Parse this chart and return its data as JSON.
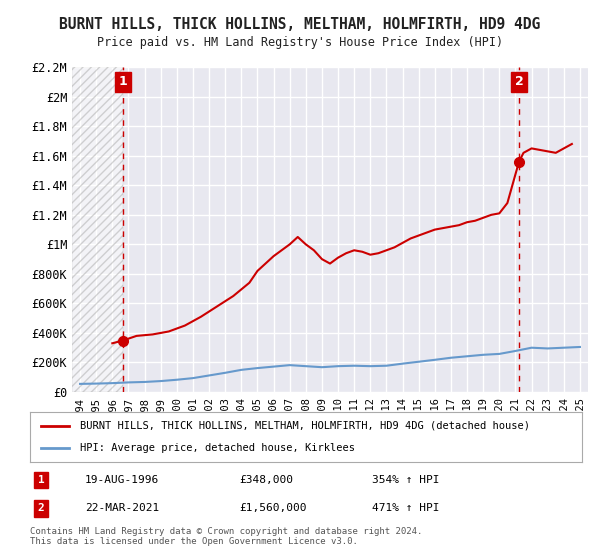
{
  "title": "BURNT HILLS, THICK HOLLINS, MELTHAM, HOLMFIRTH, HD9 4DG",
  "subtitle": "Price paid vs. HM Land Registry's House Price Index (HPI)",
  "ylim": [
    0,
    2200000
  ],
  "yticks": [
    0,
    200000,
    400000,
    600000,
    800000,
    1000000,
    1200000,
    1400000,
    1600000,
    1800000,
    2000000,
    2200000
  ],
  "ytick_labels": [
    "£0",
    "£200K",
    "£400K",
    "£600K",
    "£800K",
    "£1M",
    "£1.2M",
    "£1.4M",
    "£1.6M",
    "£1.8M",
    "£2M",
    "£2.2M"
  ],
  "xlim_start": 1993.5,
  "xlim_end": 2025.5,
  "xticks": [
    1994,
    1995,
    1996,
    1997,
    1998,
    1999,
    2000,
    2001,
    2002,
    2003,
    2004,
    2005,
    2006,
    2007,
    2008,
    2009,
    2010,
    2011,
    2012,
    2013,
    2014,
    2015,
    2016,
    2017,
    2018,
    2019,
    2020,
    2021,
    2022,
    2023,
    2024,
    2025
  ],
  "background_color": "#ffffff",
  "plot_bg_color": "#e8e8f0",
  "grid_color": "#ffffff",
  "hpi_line_color": "#6699cc",
  "price_line_color": "#cc0000",
  "vline_color": "#cc0000",
  "annotation_box_color": "#cc0000",
  "legend_label_price": "BURNT HILLS, THICK HOLLINS, MELTHAM, HOLMFIRTH, HD9 4DG (detached house)",
  "legend_label_hpi": "HPI: Average price, detached house, Kirklees",
  "point1_x": 1996.64,
  "point1_y": 348000,
  "point1_label": "1",
  "point1_date": "19-AUG-1996",
  "point1_price": "£348,000",
  "point1_hpi": "354% ↑ HPI",
  "point2_x": 2021.22,
  "point2_y": 1560000,
  "point2_label": "2",
  "point2_date": "22-MAR-2021",
  "point2_price": "£1,560,000",
  "point2_hpi": "471% ↑ HPI",
  "copyright_text": "Contains HM Land Registry data © Crown copyright and database right 2024.\nThis data is licensed under the Open Government Licence v3.0.",
  "hpi_data_x": [
    1994,
    1995,
    1996,
    1997,
    1998,
    1999,
    2000,
    2001,
    2002,
    2003,
    2004,
    2005,
    2006,
    2007,
    2008,
    2009,
    2010,
    2011,
    2012,
    2013,
    2014,
    2015,
    2016,
    2017,
    2018,
    2019,
    2020,
    2021,
    2022,
    2023,
    2024,
    2025
  ],
  "hpi_data_y": [
    55000,
    57000,
    60000,
    65000,
    68000,
    74000,
    83000,
    94000,
    112000,
    130000,
    150000,
    162000,
    172000,
    182000,
    175000,
    168000,
    175000,
    178000,
    175000,
    178000,
    192000,
    205000,
    218000,
    232000,
    242000,
    252000,
    258000,
    278000,
    300000,
    295000,
    300000,
    305000
  ],
  "price_data_x": [
    1996.0,
    1996.64,
    1997.5,
    1998.5,
    1999.5,
    2000.5,
    2001.5,
    2002.5,
    2003.5,
    2004.5,
    2005.0,
    2005.5,
    2006.0,
    2006.5,
    2007.0,
    2007.5,
    2008.0,
    2008.5,
    2009.0,
    2009.5,
    2010.0,
    2010.5,
    2011.0,
    2011.5,
    2012.0,
    2012.5,
    2013.0,
    2013.5,
    2014.0,
    2014.5,
    2015.0,
    2015.5,
    2016.0,
    2016.5,
    2017.0,
    2017.5,
    2018.0,
    2018.5,
    2019.0,
    2019.5,
    2020.0,
    2020.5,
    2021.22,
    2021.5,
    2022.0,
    2022.5,
    2023.0,
    2023.5,
    2024.0,
    2024.5
  ],
  "price_data_y": [
    330000,
    348000,
    380000,
    390000,
    410000,
    450000,
    510000,
    580000,
    650000,
    740000,
    820000,
    870000,
    920000,
    960000,
    1000000,
    1050000,
    1000000,
    960000,
    900000,
    870000,
    910000,
    940000,
    960000,
    950000,
    930000,
    940000,
    960000,
    980000,
    1010000,
    1040000,
    1060000,
    1080000,
    1100000,
    1110000,
    1120000,
    1130000,
    1150000,
    1160000,
    1180000,
    1200000,
    1210000,
    1280000,
    1560000,
    1620000,
    1650000,
    1640000,
    1630000,
    1620000,
    1650000,
    1680000
  ]
}
